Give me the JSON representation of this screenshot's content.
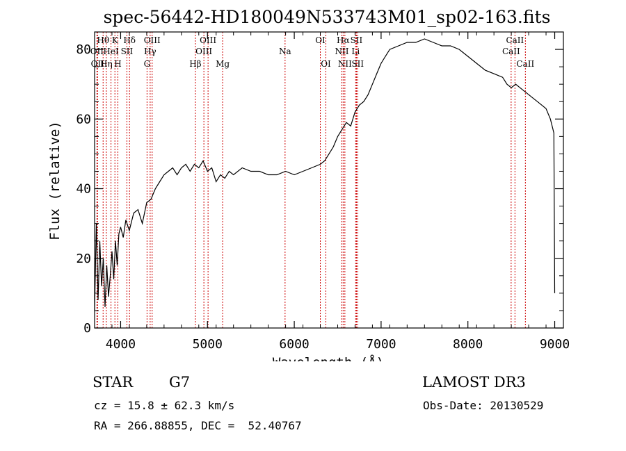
{
  "chart_data": {
    "type": "line",
    "title": "spec-56442-HD180049N533743M01_sp02-163.fits",
    "xlabel": "Wavelength (Å)",
    "ylabel": "Flux (relative)",
    "xlim": [
      3700,
      9100
    ],
    "ylim": [
      0,
      85
    ],
    "x_ticks": [
      4000,
      5000,
      6000,
      7000,
      8000,
      9000
    ],
    "y_ticks": [
      0,
      20,
      40,
      60,
      80
    ],
    "grid": false,
    "series": [
      {
        "x": [
          3700,
          3720,
          3740,
          3760,
          3780,
          3800,
          3820,
          3840,
          3860,
          3880,
          3900,
          3920,
          3940,
          3960,
          3980,
          4000,
          4030,
          4060,
          4100,
          4150,
          4200,
          4250,
          4300,
          4350,
          4400,
          4450,
          4500,
          4550,
          4600,
          4650,
          4700,
          4750,
          4800,
          4850,
          4900,
          4950,
          5000,
          5050,
          5100,
          5150,
          5200,
          5250,
          5300,
          5400,
          5500,
          5600,
          5700,
          5800,
          5900,
          6000,
          6100,
          6200,
          6300,
          6350,
          6400,
          6450,
          6500,
          6550,
          6600,
          6650,
          6700,
          6750,
          6800,
          6850,
          6900,
          6950,
          7000,
          7050,
          7100,
          7200,
          7300,
          7400,
          7500,
          7600,
          7700,
          7800,
          7900,
          8000,
          8100,
          8200,
          8300,
          8400,
          8450,
          8500,
          8550,
          8600,
          8650,
          8700,
          8750,
          8800,
          8850,
          8900,
          8950,
          8990,
          9000
        ],
        "y": [
          5,
          30,
          8,
          25,
          12,
          20,
          6,
          18,
          9,
          15,
          22,
          14,
          25,
          18,
          27,
          29,
          26,
          31,
          28,
          33,
          34,
          30,
          36,
          37,
          40,
          42,
          44,
          45,
          46,
          44,
          46,
          47,
          45,
          47,
          46,
          48,
          45,
          46,
          42,
          44,
          43,
          45,
          44,
          46,
          45,
          45,
          44,
          44,
          45,
          44,
          45,
          46,
          47,
          48,
          50,
          52,
          55,
          57,
          59,
          58,
          62,
          64,
          65,
          67,
          70,
          73,
          76,
          78,
          80,
          81,
          82,
          82,
          83,
          82,
          81,
          81,
          80,
          78,
          76,
          74,
          73,
          72,
          70,
          69,
          70,
          69,
          68,
          67,
          66,
          65,
          64,
          63,
          60,
          56,
          10
        ]
      }
    ],
    "lines": [
      {
        "x": 3727,
        "label": "OII",
        "row": 2
      },
      {
        "x": 3734,
        "label": "OII",
        "row": 3
      },
      {
        "x": 3798,
        "label": "Hθ",
        "row": 1
      },
      {
        "x": 3835,
        "label": "Hη",
        "row": 3
      },
      {
        "x": 3889,
        "label": "HeI",
        "row": 2
      },
      {
        "x": 3934,
        "label": "K",
        "row": 1
      },
      {
        "x": 3968,
        "label": "H",
        "row": 3
      },
      {
        "x": 4072,
        "label": "SII",
        "row": 2
      },
      {
        "x": 4102,
        "label": "Hδ",
        "row": 1
      },
      {
        "x": 4304,
        "label": "G",
        "row": 3
      },
      {
        "x": 4340,
        "label": "Hγ",
        "row": 2
      },
      {
        "x": 4363,
        "label": "OIII",
        "row": 1
      },
      {
        "x": 4861,
        "label": "Hβ",
        "row": 3
      },
      {
        "x": 4959,
        "label": "OIII",
        "row": 2
      },
      {
        "x": 5007,
        "label": "OIII",
        "row": 1
      },
      {
        "x": 5175,
        "label": "Mg",
        "row": 3
      },
      {
        "x": 5894,
        "label": "Na",
        "row": 2
      },
      {
        "x": 6300,
        "label": "OI",
        "row": 1
      },
      {
        "x": 6364,
        "label": "OI",
        "row": 3
      },
      {
        "x": 6548,
        "label": "NII",
        "row": 2
      },
      {
        "x": 6563,
        "label": "Hα",
        "row": 1
      },
      {
        "x": 6583,
        "label": "NII",
        "row": 3
      },
      {
        "x": 6707,
        "label": "Li",
        "row": 2
      },
      {
        "x": 6716,
        "label": "SII",
        "row": 1
      },
      {
        "x": 6731,
        "label": "SII",
        "row": 3
      },
      {
        "x": 8498,
        "label": "CaII",
        "row": 2
      },
      {
        "x": 8542,
        "label": "CaII",
        "row": 1
      },
      {
        "x": 8662,
        "label": "CaII",
        "row": 3
      }
    ],
    "colors": {
      "spectrum": "#000000",
      "lines": "#cc0000"
    }
  },
  "info": {
    "object_class": "STAR",
    "subclass": "G7",
    "survey": "LAMOST DR3",
    "cz": "cz = 15.8 ± 62.3 km/s",
    "obs_date": "Obs-Date: 20130529",
    "radec": "RA = 266.88855, DEC =  52.40767"
  }
}
